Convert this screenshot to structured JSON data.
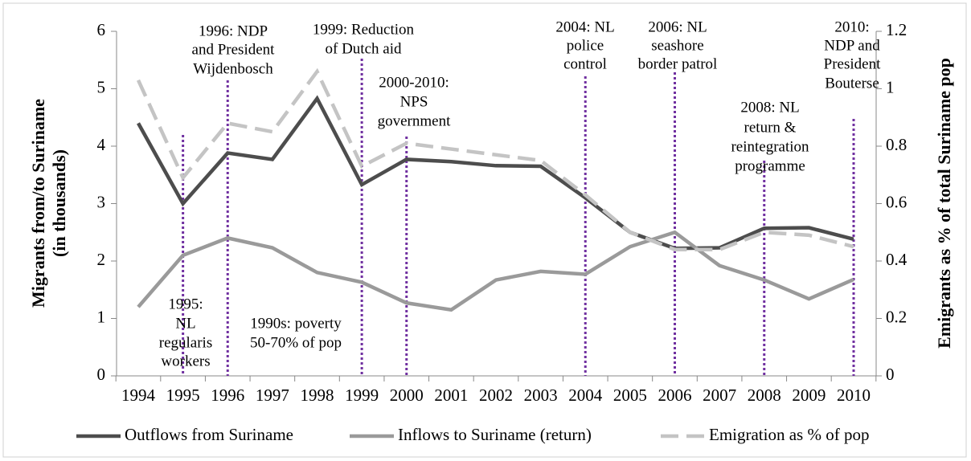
{
  "chart_data": {
    "type": "line",
    "categories": [
      "1994",
      "1995",
      "1996",
      "1997",
      "1998",
      "1999",
      "2000",
      "2001",
      "2002",
      "2003",
      "2004",
      "2005",
      "2006",
      "2007",
      "2008",
      "2009",
      "2010"
    ],
    "y_label": [
      "Migrants from/to Suriname",
      "(in thousands)"
    ],
    "y2_label": "Emigrants as % of total Suriname pop",
    "ylim": [
      0,
      6
    ],
    "yticks": [
      0,
      1,
      2,
      3,
      4,
      5,
      6
    ],
    "y2lim": [
      0,
      1.2
    ],
    "y2ticks": [
      0,
      0.2,
      0.4,
      0.6,
      0.8,
      1,
      1.2
    ],
    "series": [
      {
        "name": "Outflows from Suriname",
        "color": "#4d4d4d",
        "dash": false,
        "values": [
          4.4,
          3.0,
          3.88,
          3.77,
          4.83,
          3.33,
          3.77,
          3.73,
          3.66,
          3.65,
          3.1,
          2.5,
          2.22,
          2.23,
          2.57,
          2.58,
          2.38
        ]
      },
      {
        "name": "Inflows to Suriname (return)",
        "color": "#9a9a9a",
        "dash": false,
        "values": [
          1.2,
          2.1,
          2.4,
          2.23,
          1.8,
          1.63,
          1.27,
          1.15,
          1.67,
          1.82,
          1.77,
          2.25,
          2.5,
          1.92,
          1.67,
          1.34,
          1.68
        ]
      },
      {
        "name": "Emigration as % of pop",
        "color": "#c4c4c4",
        "dash": true,
        "axis": "y2",
        "values": [
          1.03,
          0.69,
          0.88,
          0.85,
          1.06,
          0.73,
          0.81,
          0.79,
          0.77,
          0.75,
          0.63,
          0.5,
          0.44,
          0.44,
          0.5,
          0.49,
          0.45
        ]
      }
    ],
    "event_color": "#7030a0",
    "annotations": [
      {
        "x": "1995",
        "text": [
          "1995:",
          "NL",
          "regularis",
          "workers"
        ]
      },
      {
        "x": "1996",
        "text": [
          "1996: NDP",
          "and President",
          "Wijdenbosch"
        ]
      },
      {
        "x": "1999",
        "text": [
          "1999: Reduction",
          "of Dutch aid"
        ]
      },
      {
        "x": "2000",
        "text": [
          "2000-2010:",
          "NPS",
          "government"
        ]
      },
      {
        "text": [
          "1990s: poverty",
          "50-70% of pop"
        ]
      },
      {
        "x": "2004",
        "text": [
          "2004: NL",
          "police",
          "control"
        ]
      },
      {
        "x": "2006",
        "text": [
          "2006: NL",
          "seashore",
          "border patrol"
        ]
      },
      {
        "x": "2008",
        "text": [
          "2008: NL",
          "return &",
          "reintegration",
          "programme"
        ]
      },
      {
        "x": "2010",
        "text": [
          "2010:",
          "NDP and",
          "President",
          "Bouterse"
        ]
      }
    ]
  }
}
